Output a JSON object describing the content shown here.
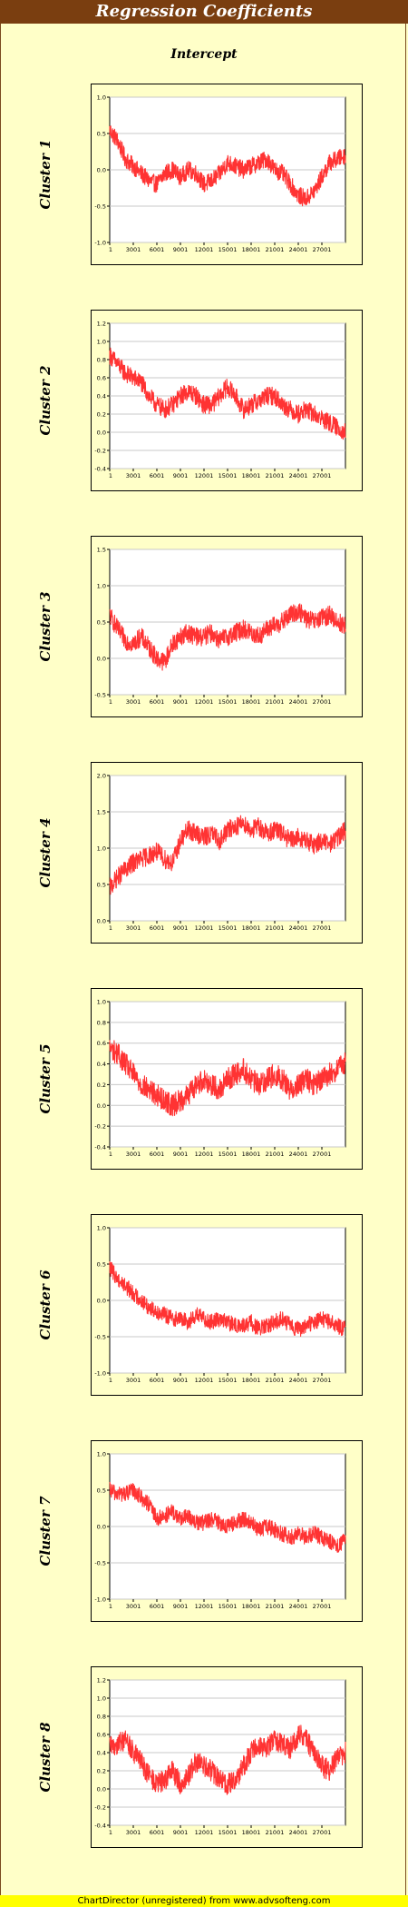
{
  "title": "Regression Coefficients",
  "subtitle": "Intercept",
  "footer": "ChartDirector (unregistered) from www.advsofteng.com",
  "colors": {
    "series": "#ff3333",
    "title_bar": "#7a3e10",
    "background": "#ffffc8",
    "plot_area": "#ffffff",
    "gridline": "#c8c8c8"
  },
  "chart_data": [
    {
      "type": "line",
      "title": "Cluster 1",
      "x_ticks": [
        "1",
        "3001",
        "6001",
        "9001",
        "12001",
        "15001",
        "18001",
        "21001",
        "24001",
        "27001"
      ],
      "x_range": [
        1,
        30000
      ],
      "yticks": [
        -1.0,
        -0.5,
        0.0,
        0.5,
        1.0
      ],
      "ytick_labels": [
        "-1.0",
        "-0.5",
        "0.0",
        "0.5",
        "1.0"
      ],
      "ylim": [
        -1.0,
        1.0
      ],
      "series": [
        {
          "x": [
            1,
            1000,
            2000,
            3000,
            4000,
            5000,
            6000,
            7000,
            8000,
            9000,
            10000,
            11000,
            12000,
            13000,
            14000,
            15000,
            16000,
            17000,
            18000,
            19000,
            20000,
            21000,
            22000,
            23000,
            24000,
            25000,
            26000,
            27000,
            28000,
            29000,
            30000
          ],
          "values": [
            0.55,
            0.4,
            0.15,
            0.05,
            -0.05,
            -0.15,
            -0.2,
            -0.05,
            0.0,
            -0.1,
            0.0,
            -0.05,
            -0.2,
            -0.15,
            -0.05,
            0.1,
            0.05,
            0.0,
            0.05,
            0.1,
            0.15,
            0.0,
            -0.05,
            -0.2,
            -0.35,
            -0.4,
            -0.3,
            -0.1,
            0.1,
            0.15,
            0.2
          ],
          "noise": 0.12
        }
      ]
    },
    {
      "type": "line",
      "title": "Cluster 2",
      "x_ticks": [
        "1",
        "3001",
        "6001",
        "9001",
        "12001",
        "15001",
        "18001",
        "21001",
        "24001",
        "27001"
      ],
      "x_range": [
        1,
        30000
      ],
      "yticks": [
        -0.4,
        -0.2,
        0.0,
        0.2,
        0.4,
        0.6,
        0.8,
        1.0,
        1.2
      ],
      "ytick_labels": [
        "-0.4",
        "-0.2",
        "0.0",
        "0.2",
        "0.4",
        "0.6",
        "0.8",
        "1.0",
        "1.2"
      ],
      "ylim": [
        -0.4,
        1.2
      ],
      "series": [
        {
          "x": [
            1,
            1000,
            2000,
            3000,
            4000,
            5000,
            6000,
            7000,
            8000,
            9000,
            10000,
            11000,
            12000,
            13000,
            14000,
            15000,
            16000,
            17000,
            18000,
            19000,
            20000,
            21000,
            22000,
            23000,
            24000,
            25000,
            26000,
            27000,
            28000,
            29000,
            30000
          ],
          "values": [
            0.85,
            0.75,
            0.65,
            0.6,
            0.55,
            0.4,
            0.3,
            0.25,
            0.3,
            0.4,
            0.45,
            0.4,
            0.3,
            0.3,
            0.4,
            0.5,
            0.4,
            0.25,
            0.3,
            0.35,
            0.4,
            0.4,
            0.3,
            0.25,
            0.2,
            0.25,
            0.2,
            0.15,
            0.1,
            0.05,
            0.0
          ],
          "noise": 0.1
        }
      ]
    },
    {
      "type": "line",
      "title": "Cluster 3",
      "x_ticks": [
        "1",
        "3001",
        "6001",
        "9001",
        "12001",
        "15001",
        "18001",
        "21001",
        "24001",
        "27001"
      ],
      "x_range": [
        1,
        30000
      ],
      "yticks": [
        -0.5,
        0.0,
        0.5,
        1.0,
        1.5
      ],
      "ytick_labels": [
        "-0.5",
        "0.0",
        "0.5",
        "1.0",
        "1.5"
      ],
      "ylim": [
        -0.5,
        1.5
      ],
      "series": [
        {
          "x": [
            1,
            1000,
            2000,
            3000,
            4000,
            5000,
            6000,
            7000,
            8000,
            9000,
            10000,
            11000,
            12000,
            13000,
            14000,
            15000,
            16000,
            17000,
            18000,
            19000,
            20000,
            21000,
            22000,
            23000,
            24000,
            25000,
            26000,
            27000,
            28000,
            29000,
            30000
          ],
          "values": [
            0.6,
            0.4,
            0.25,
            0.2,
            0.3,
            0.15,
            0.0,
            -0.05,
            0.2,
            0.3,
            0.35,
            0.3,
            0.3,
            0.35,
            0.25,
            0.3,
            0.35,
            0.4,
            0.35,
            0.3,
            0.4,
            0.45,
            0.5,
            0.6,
            0.65,
            0.55,
            0.5,
            0.55,
            0.6,
            0.5,
            0.45
          ],
          "noise": 0.13
        }
      ]
    },
    {
      "type": "line",
      "title": "Cluster 4",
      "x_ticks": [
        "1",
        "3001",
        "6001",
        "9001",
        "12001",
        "15001",
        "18001",
        "21001",
        "24001",
        "27001"
      ],
      "x_range": [
        1,
        30000
      ],
      "yticks": [
        0.0,
        0.5,
        1.0,
        1.5,
        2.0
      ],
      "ytick_labels": [
        "0.0",
        "0.5",
        "1.0",
        "1.5",
        "2.0"
      ],
      "ylim": [
        0.0,
        2.0
      ],
      "series": [
        {
          "x": [
            1,
            1000,
            2000,
            3000,
            4000,
            5000,
            6000,
            7000,
            8000,
            9000,
            10000,
            11000,
            12000,
            13000,
            14000,
            15000,
            16000,
            17000,
            18000,
            19000,
            20000,
            21000,
            22000,
            23000,
            24000,
            25000,
            26000,
            27000,
            28000,
            29000,
            30000
          ],
          "values": [
            0.45,
            0.6,
            0.7,
            0.8,
            0.85,
            0.9,
            0.95,
            0.85,
            0.8,
            1.1,
            1.25,
            1.2,
            1.15,
            1.2,
            1.1,
            1.25,
            1.3,
            1.35,
            1.25,
            1.3,
            1.2,
            1.25,
            1.2,
            1.1,
            1.15,
            1.1,
            1.05,
            1.1,
            1.05,
            1.15,
            1.25
          ],
          "noise": 0.13
        }
      ]
    },
    {
      "type": "line",
      "title": "Cluster 5",
      "x_ticks": [
        "1",
        "3001",
        "6001",
        "9001",
        "12001",
        "15001",
        "18001",
        "21001",
        "24001",
        "27001"
      ],
      "x_range": [
        1,
        30000
      ],
      "yticks": [
        -0.4,
        -0.2,
        0.0,
        0.2,
        0.4,
        0.6,
        0.8,
        1.0
      ],
      "ytick_labels": [
        "-0.4",
        "-0.2",
        "0.0",
        "0.2",
        "0.4",
        "0.6",
        "0.8",
        "1.0"
      ],
      "ylim": [
        -0.4,
        1.0
      ],
      "series": [
        {
          "x": [
            1,
            1000,
            2000,
            3000,
            4000,
            5000,
            6000,
            7000,
            8000,
            9000,
            10000,
            11000,
            12000,
            13000,
            14000,
            15000,
            16000,
            17000,
            18000,
            19000,
            20000,
            21000,
            22000,
            23000,
            24000,
            25000,
            26000,
            27000,
            28000,
            29000,
            30000
          ],
          "values": [
            0.55,
            0.5,
            0.4,
            0.3,
            0.2,
            0.15,
            0.1,
            0.05,
            0.0,
            0.05,
            0.1,
            0.2,
            0.25,
            0.2,
            0.15,
            0.25,
            0.3,
            0.35,
            0.25,
            0.2,
            0.25,
            0.3,
            0.25,
            0.15,
            0.2,
            0.25,
            0.2,
            0.25,
            0.3,
            0.35,
            0.4
          ],
          "noise": 0.11
        }
      ]
    },
    {
      "type": "line",
      "title": "Cluster 6",
      "x_ticks": [
        "1",
        "3001",
        "6001",
        "9001",
        "12001",
        "15001",
        "18001",
        "21001",
        "24001",
        "27001"
      ],
      "x_range": [
        1,
        30000
      ],
      "yticks": [
        -1.0,
        -0.5,
        0.0,
        0.5,
        1.0
      ],
      "ytick_labels": [
        "-1.0",
        "-0.5",
        "0.0",
        "0.5",
        "1.0"
      ],
      "ylim": [
        -1.0,
        1.0
      ],
      "series": [
        {
          "x": [
            1,
            1000,
            2000,
            3000,
            4000,
            5000,
            6000,
            7000,
            8000,
            9000,
            10000,
            11000,
            12000,
            13000,
            14000,
            15000,
            16000,
            17000,
            18000,
            19000,
            20000,
            21000,
            22000,
            23000,
            24000,
            25000,
            26000,
            27000,
            28000,
            29000,
            30000
          ],
          "values": [
            0.45,
            0.3,
            0.2,
            0.1,
            0.0,
            -0.1,
            -0.15,
            -0.2,
            -0.25,
            -0.25,
            -0.3,
            -0.2,
            -0.25,
            -0.3,
            -0.25,
            -0.3,
            -0.35,
            -0.35,
            -0.3,
            -0.4,
            -0.35,
            -0.3,
            -0.25,
            -0.35,
            -0.4,
            -0.35,
            -0.3,
            -0.25,
            -0.3,
            -0.35,
            -0.4
          ],
          "noise": 0.11
        }
      ]
    },
    {
      "type": "line",
      "title": "Cluster 7",
      "x_ticks": [
        "1",
        "3001",
        "6001",
        "9001",
        "12001",
        "15001",
        "18001",
        "21001",
        "24001",
        "27001"
      ],
      "x_range": [
        1,
        30000
      ],
      "yticks": [
        -1.0,
        -0.5,
        0.0,
        0.5,
        1.0
      ],
      "ytick_labels": [
        "-1.0",
        "-0.5",
        "0.0",
        "0.5",
        "1.0"
      ],
      "ylim": [
        -1.0,
        1.0
      ],
      "series": [
        {
          "x": [
            1,
            1000,
            2000,
            3000,
            4000,
            5000,
            6000,
            7000,
            8000,
            9000,
            10000,
            11000,
            12000,
            13000,
            14000,
            15000,
            16000,
            17000,
            18000,
            19000,
            20000,
            21000,
            22000,
            23000,
            24000,
            25000,
            26000,
            27000,
            28000,
            29000,
            30000
          ],
          "values": [
            0.5,
            0.45,
            0.45,
            0.5,
            0.4,
            0.3,
            0.1,
            0.15,
            0.2,
            0.1,
            0.15,
            0.05,
            0.05,
            0.1,
            0.05,
            0.0,
            0.05,
            0.1,
            0.05,
            -0.05,
            0.0,
            -0.05,
            -0.1,
            -0.15,
            -0.1,
            -0.15,
            -0.1,
            -0.15,
            -0.2,
            -0.25,
            -0.2
          ],
          "noise": 0.11
        }
      ]
    },
    {
      "type": "line",
      "title": "Cluster 8",
      "x_ticks": [
        "1",
        "3001",
        "6001",
        "9001",
        "12001",
        "15001",
        "18001",
        "21001",
        "24001",
        "27001"
      ],
      "x_range": [
        1,
        30000
      ],
      "yticks": [
        -0.4,
        -0.2,
        0.0,
        0.2,
        0.4,
        0.6,
        0.8,
        1.0,
        1.2
      ],
      "ytick_labels": [
        "-0.4",
        "-0.2",
        "0.0",
        "0.2",
        "0.4",
        "0.6",
        "0.8",
        "1.0",
        "1.2"
      ],
      "ylim": [
        -0.4,
        1.2
      ],
      "series": [
        {
          "x": [
            1,
            1000,
            2000,
            3000,
            4000,
            5000,
            6000,
            7000,
            8000,
            9000,
            10000,
            11000,
            12000,
            13000,
            14000,
            15000,
            16000,
            17000,
            18000,
            19000,
            20000,
            21000,
            22000,
            23000,
            24000,
            25000,
            26000,
            27000,
            28000,
            29000,
            30000
          ],
          "values": [
            0.45,
            0.5,
            0.55,
            0.4,
            0.3,
            0.15,
            0.05,
            0.1,
            0.2,
            0.05,
            0.15,
            0.3,
            0.25,
            0.2,
            0.1,
            0.05,
            0.1,
            0.25,
            0.4,
            0.5,
            0.45,
            0.55,
            0.5,
            0.45,
            0.6,
            0.55,
            0.4,
            0.25,
            0.2,
            0.35,
            0.4
          ],
          "noise": 0.12
        }
      ]
    }
  ]
}
